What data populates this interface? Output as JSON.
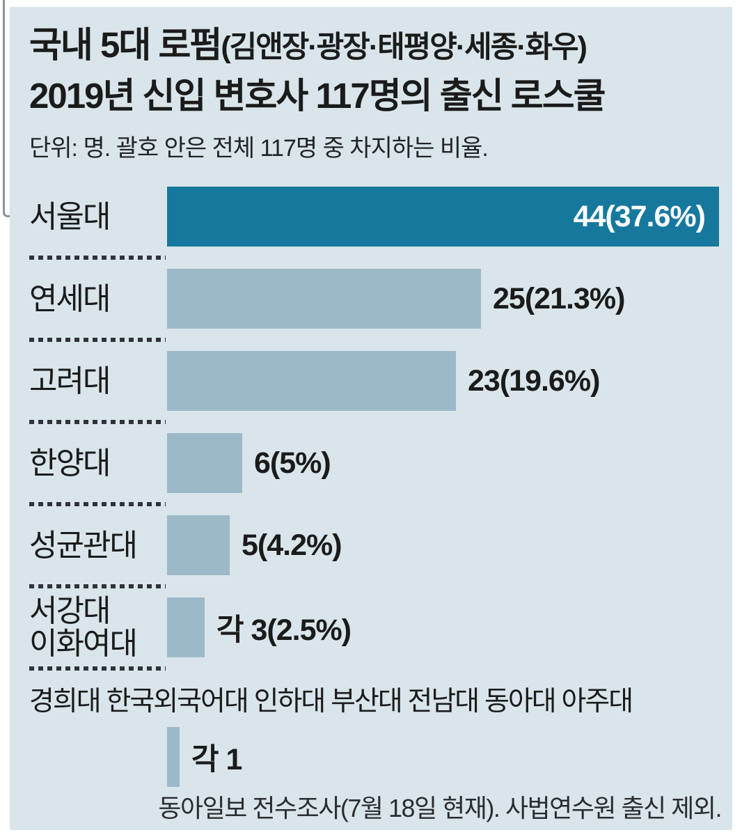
{
  "header": {
    "title_line1_main": "국내 5대 로펌",
    "title_line1_paren": "(김앤장·광장·태평양·세종·화우)",
    "title_line2": "2019년 신입 변호사 117명의 출신 로스쿨",
    "subtitle": "단위: 명. 괄호 안은 전체 117명 중 차지하는 비율."
  },
  "chart_data": {
    "type": "bar",
    "orientation": "horizontal",
    "title": "국내 5대 로펌(김앤장·광장·태평양·세종·화우) 2019년 신입 변호사 117명의 출신 로스쿨",
    "unit_note": "단위: 명. 괄호 안은 전체 117명 중 차지하는 비율.",
    "total_count": 117,
    "xlim": [
      0,
      44
    ],
    "grid": false,
    "legend": false,
    "categories": [
      "서울대",
      "연세대",
      "고려대",
      "한양대",
      "성균관대",
      "서강대 이화여대",
      "경희대 한국외국어대 인하대 부산대 전남대 동아대 아주대"
    ],
    "values": [
      44,
      25,
      23,
      6,
      5,
      3,
      1
    ],
    "percentages": [
      37.6,
      21.3,
      19.6,
      5,
      4.2,
      2.5,
      null
    ],
    "rows": [
      {
        "label_lines": [
          "서울대"
        ],
        "value": 44,
        "percent": 37.6,
        "value_label": "44(37.6%)",
        "highlight": true,
        "value_inside_bar": true
      },
      {
        "label_lines": [
          "연세대"
        ],
        "value": 25,
        "percent": 21.3,
        "value_label": "25(21.3%)",
        "highlight": false,
        "value_inside_bar": false
      },
      {
        "label_lines": [
          "고려대"
        ],
        "value": 23,
        "percent": 19.6,
        "value_label": "23(19.6%)",
        "highlight": false,
        "value_inside_bar": false
      },
      {
        "label_lines": [
          "한양대"
        ],
        "value": 6,
        "percent": 5,
        "value_label": "6(5%)",
        "highlight": false,
        "value_inside_bar": false
      },
      {
        "label_lines": [
          "성균관대"
        ],
        "value": 5,
        "percent": 4.2,
        "value_label": "5(4.2%)",
        "highlight": false,
        "value_inside_bar": false
      },
      {
        "label_lines": [
          "서강대",
          "이화여대"
        ],
        "value": 3,
        "percent": 2.5,
        "value_label": "각 3(2.5%)",
        "highlight": false,
        "value_inside_bar": false
      },
      {
        "label_lines": [],
        "group_label": "경희대 한국외국어대 인하대 부산대 전남대 동아대 아주대",
        "value": 1,
        "percent": null,
        "value_label": "각 1",
        "highlight": false,
        "value_inside_bar": false
      }
    ]
  },
  "footer": {
    "source_note": "동아일보 전수조사(7월 18일 현재). 사법연수원 출신 제외."
  },
  "colors": {
    "panel_background": "#d9e5ea",
    "bar_highlight": "#17789e",
    "bar_default": "#9cb9c8",
    "text_primary": "#1b1b1b",
    "value_on_bar": "#ffffff",
    "separator_dots": "#2f3337",
    "page_edge_line": "#8d9298"
  }
}
